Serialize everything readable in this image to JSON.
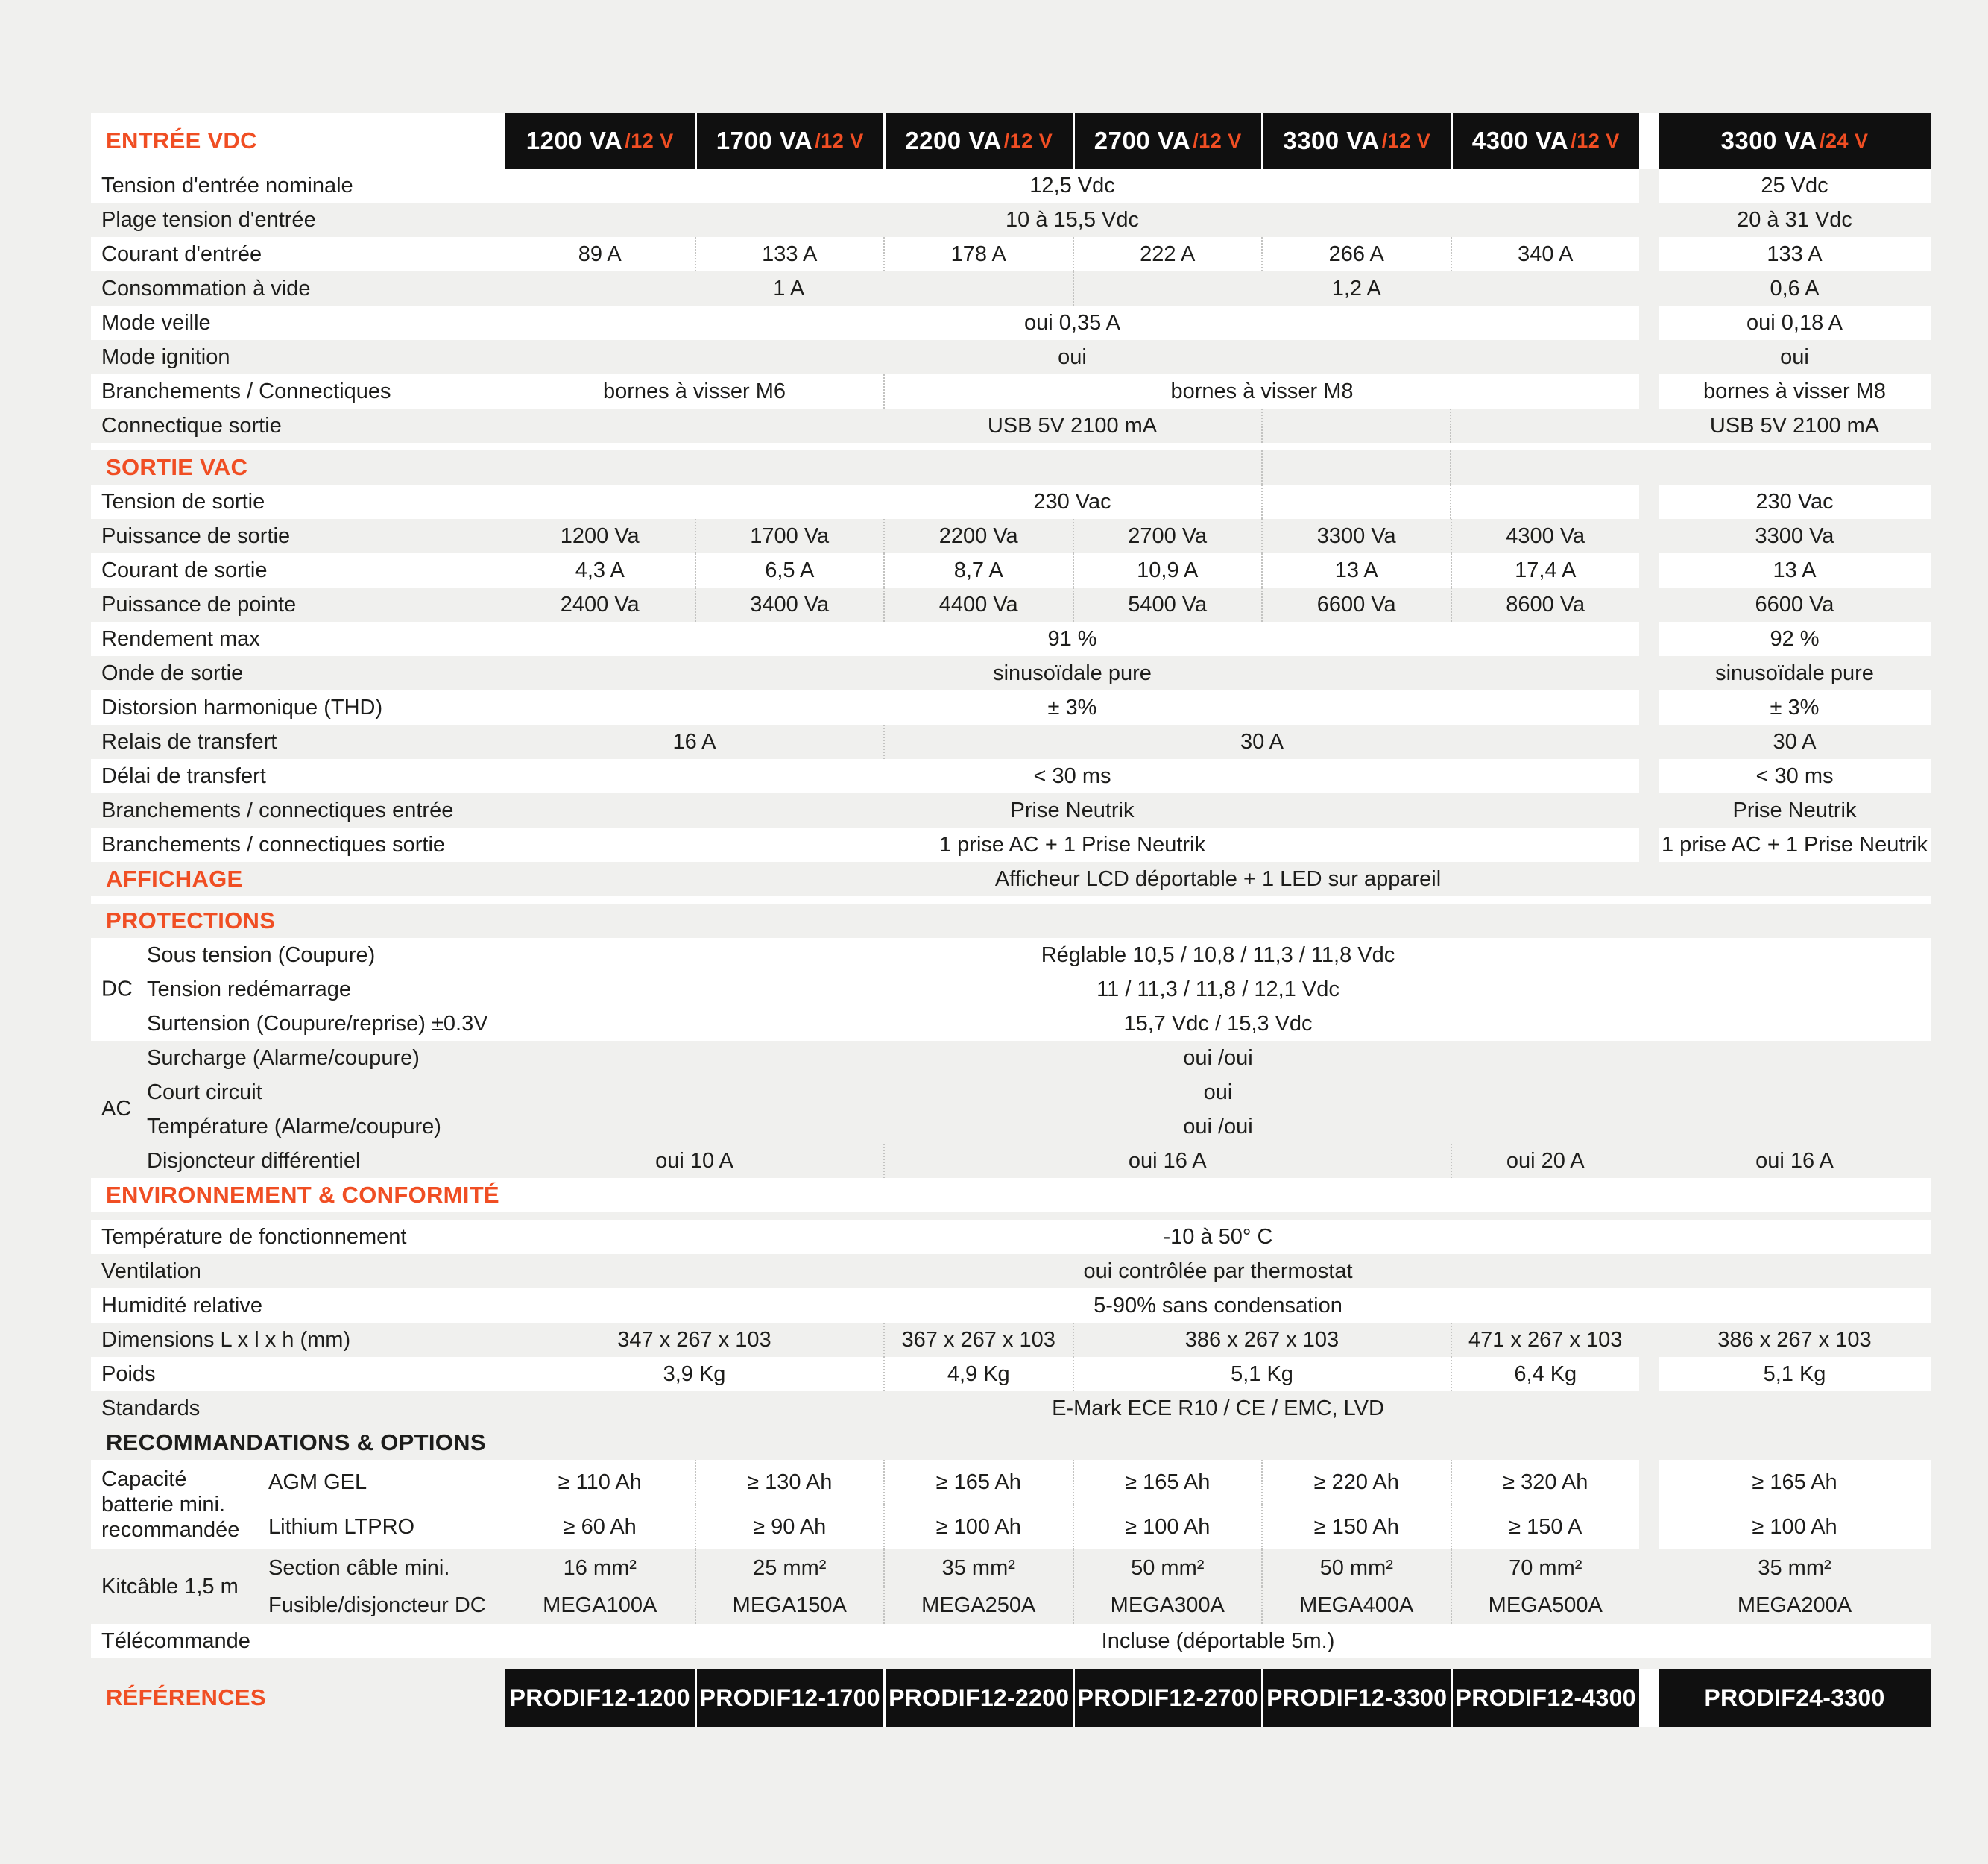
{
  "colors": {
    "accent": "#f04e23",
    "text": "#1d1d1b",
    "page_background": "#f0f0ee",
    "model_header_background": "#101010",
    "row_band": "#ffffff",
    "dotted_separator": "#c3c3c1"
  },
  "header": {
    "section": "ENTRÉE VDC",
    "models": [
      {
        "name": "1200 VA",
        "volt": "/12 V"
      },
      {
        "name": "1700 VA",
        "volt": "/12 V"
      },
      {
        "name": "2200 VA",
        "volt": "/12 V"
      },
      {
        "name": "2700 VA",
        "volt": "/12 V"
      },
      {
        "name": "3300 VA",
        "volt": "/12 V"
      },
      {
        "name": "4300 VA",
        "volt": "/12 V"
      }
    ],
    "model24": {
      "name": "3300 VA",
      "volt": "/24 V"
    }
  },
  "rows": [
    {
      "t": "row",
      "shade": "w",
      "label": "Tension d'entrée nominale",
      "cells": [
        {
          "s": 1,
          "e": 6,
          "v": "12,5 Vdc"
        }
      ],
      "c24": "25 Vdc"
    },
    {
      "t": "row",
      "shade": "g",
      "label": "Plage tension d'entrée",
      "cells": [
        {
          "s": 1,
          "e": 6,
          "v": "10 à 15,5 Vdc"
        }
      ],
      "c24": "20 à 31 Vdc"
    },
    {
      "t": "row",
      "shade": "w",
      "label": "Courant d'entrée",
      "cells": [
        {
          "s": 1,
          "e": 1,
          "v": "89 A"
        },
        {
          "s": 2,
          "e": 2,
          "v": "133 A"
        },
        {
          "s": 3,
          "e": 3,
          "v": "178 A"
        },
        {
          "s": 4,
          "e": 4,
          "v": "222 A"
        },
        {
          "s": 5,
          "e": 5,
          "v": "266 A"
        },
        {
          "s": 6,
          "e": 6,
          "v": "340 A"
        }
      ],
      "c24": "133 A"
    },
    {
      "t": "row",
      "shade": "g",
      "label": "Consommation à vide",
      "cells": [
        {
          "s": 1,
          "e": 3,
          "v": "1 A"
        },
        {
          "s": 4,
          "e": 6,
          "v": "1,2 A"
        }
      ],
      "c24": "0,6 A"
    },
    {
      "t": "row",
      "shade": "w",
      "label": "Mode veille",
      "cells": [
        {
          "s": 1,
          "e": 6,
          "v": "oui 0,35 A"
        }
      ],
      "c24": "oui 0,18 A"
    },
    {
      "t": "row",
      "shade": "g",
      "label": "Mode ignition",
      "cells": [
        {
          "s": 1,
          "e": 6,
          "v": "oui"
        }
      ],
      "c24": "oui"
    },
    {
      "t": "row",
      "shade": "w",
      "label": "Branchements / Connectiques",
      "cells": [
        {
          "s": 1,
          "e": 2,
          "v": "bornes à visser M6"
        },
        {
          "s": 3,
          "e": 6,
          "v": "bornes à visser M8"
        }
      ],
      "c24": "bornes à visser M8"
    },
    {
      "t": "row",
      "shade": "g",
      "label": "Connectique sortie",
      "art": true,
      "cells": [
        {
          "s": 1,
          "e": 6,
          "v": "USB 5V 2100 mA"
        }
      ],
      "c24": "USB 5V 2100 mA"
    },
    {
      "t": "spacer",
      "shade": "w",
      "h": 10
    },
    {
      "t": "section",
      "shade": "g",
      "label": "SORTIE VAC",
      "art": true
    },
    {
      "t": "row",
      "shade": "w",
      "label": "Tension de sortie",
      "art": true,
      "cells": [
        {
          "s": 1,
          "e": 6,
          "v": "230 Vac"
        }
      ],
      "c24": "230 Vac"
    },
    {
      "t": "row",
      "shade": "g",
      "label": "Puissance de sortie",
      "cells": [
        {
          "s": 1,
          "e": 1,
          "v": "1200 Va"
        },
        {
          "s": 2,
          "e": 2,
          "v": "1700 Va"
        },
        {
          "s": 3,
          "e": 3,
          "v": "2200 Va"
        },
        {
          "s": 4,
          "e": 4,
          "v": "2700 Va"
        },
        {
          "s": 5,
          "e": 5,
          "v": "3300 Va"
        },
        {
          "s": 6,
          "e": 6,
          "v": "4300 Va"
        }
      ],
      "c24": "3300 Va"
    },
    {
      "t": "row",
      "shade": "w",
      "label": "Courant de sortie",
      "cells": [
        {
          "s": 1,
          "e": 1,
          "v": "4,3 A"
        },
        {
          "s": 2,
          "e": 2,
          "v": "6,5 A"
        },
        {
          "s": 3,
          "e": 3,
          "v": "8,7 A"
        },
        {
          "s": 4,
          "e": 4,
          "v": "10,9 A"
        },
        {
          "s": 5,
          "e": 5,
          "v": "13 A"
        },
        {
          "s": 6,
          "e": 6,
          "v": "17,4 A"
        }
      ],
      "c24": "13 A"
    },
    {
      "t": "row",
      "shade": "g",
      "label": "Puissance de pointe",
      "cells": [
        {
          "s": 1,
          "e": 1,
          "v": "2400 Va"
        },
        {
          "s": 2,
          "e": 2,
          "v": "3400 Va"
        },
        {
          "s": 3,
          "e": 3,
          "v": "4400 Va"
        },
        {
          "s": 4,
          "e": 4,
          "v": "5400 Va"
        },
        {
          "s": 5,
          "e": 5,
          "v": "6600 Va"
        },
        {
          "s": 6,
          "e": 6,
          "v": "8600 Va"
        }
      ],
      "c24": "6600 Va"
    },
    {
      "t": "row",
      "shade": "w",
      "label": "Rendement max",
      "cells": [
        {
          "s": 1,
          "e": 6,
          "v": "91 %"
        }
      ],
      "c24": "92 %"
    },
    {
      "t": "row",
      "shade": "g",
      "label": "Onde de sortie",
      "cells": [
        {
          "s": 1,
          "e": 6,
          "v": "sinusoïdale pure"
        }
      ],
      "c24": "sinusoïdale pure"
    },
    {
      "t": "row",
      "shade": "w",
      "label": "Distorsion harmonique (THD)",
      "cells": [
        {
          "s": 1,
          "e": 6,
          "v": "± 3%"
        }
      ],
      "c24": "± 3%"
    },
    {
      "t": "row",
      "shade": "g",
      "label": "Relais de transfert",
      "cells": [
        {
          "s": 1,
          "e": 2,
          "v": "16 A"
        },
        {
          "s": 3,
          "e": 6,
          "v": "30 A"
        }
      ],
      "c24": "30 A"
    },
    {
      "t": "row",
      "shade": "w",
      "label": "Délai de transfert",
      "cells": [
        {
          "s": 1,
          "e": 6,
          "v": "< 30 ms"
        }
      ],
      "c24": "< 30 ms"
    },
    {
      "t": "row",
      "shade": "g",
      "label": "Branchements / connectiques entrée",
      "cells": [
        {
          "s": 1,
          "e": 6,
          "v": "Prise Neutrik"
        }
      ],
      "c24": "Prise Neutrik"
    },
    {
      "t": "row",
      "shade": "w",
      "label": "Branchements / connectiques sortie",
      "cells": [
        {
          "s": 1,
          "e": 6,
          "v": "1 prise AC + 1 Prise Neutrik"
        }
      ],
      "c24": "1 prise AC + 1 Prise Neutrik"
    },
    {
      "t": "section",
      "shade": "g",
      "label": "AFFICHAGE",
      "full": "Afficheur LCD déportable + 1 LED sur appareil"
    },
    {
      "t": "spacer",
      "shade": "w",
      "h": 10
    },
    {
      "t": "section",
      "shade": "g",
      "label": "PROTECTIONS"
    },
    {
      "t": "row",
      "shade": "w",
      "label": "Sous tension (Coupure)",
      "indent": true,
      "full": "Réglable 10,5 / 10,8 / 11,3 / 11,8 Vdc"
    },
    {
      "t": "row",
      "shade": "w",
      "label": "Tension redémarrage",
      "indent": true,
      "group": "DC",
      "groupPos": "mid",
      "full": "11 / 11,3 / 11,8 / 12,1 Vdc"
    },
    {
      "t": "row",
      "shade": "w",
      "label": "Surtension (Coupure/reprise) ±0.3V",
      "indent": true,
      "full": "15,7 Vdc / 15,3 Vdc"
    },
    {
      "t": "row",
      "shade": "g",
      "label": "Surcharge (Alarme/coupure)",
      "indent": true,
      "full": "oui /oui"
    },
    {
      "t": "row",
      "shade": "g",
      "label": "Court circuit",
      "indent": true,
      "group": "AC",
      "groupPos": "bottom",
      "full": "oui"
    },
    {
      "t": "row",
      "shade": "g",
      "label": "Température (Alarme/coupure)",
      "indent": true,
      "full": "oui /oui"
    },
    {
      "t": "row",
      "shade": "g",
      "label": "Disjoncteur différentiel",
      "indent": true,
      "cells": [
        {
          "s": 1,
          "e": 2,
          "v": "oui 10 A"
        },
        {
          "s": 3,
          "e": 5,
          "v": "oui 16 A"
        },
        {
          "s": 6,
          "e": 6,
          "v": "oui 20 A"
        }
      ],
      "c24": "oui 16 A"
    },
    {
      "t": "section",
      "shade": "w",
      "label": "ENVIRONNEMENT & CONFORMITÉ"
    },
    {
      "t": "spacer",
      "shade": "g",
      "h": 10
    },
    {
      "t": "row",
      "shade": "w",
      "label": "Température de fonctionnement",
      "full": "-10 à 50° C"
    },
    {
      "t": "row",
      "shade": "g",
      "label": "Ventilation",
      "full": "oui contrôlée par thermostat"
    },
    {
      "t": "row",
      "shade": "w",
      "label": "Humidité relative",
      "full": "5-90% sans condensation"
    },
    {
      "t": "row",
      "shade": "g",
      "label": "Dimensions L x l x h (mm)",
      "cells": [
        {
          "s": 1,
          "e": 2,
          "v": "347 x 267 x 103"
        },
        {
          "s": 3,
          "e": 3,
          "v": "367 x 267 x 103"
        },
        {
          "s": 4,
          "e": 5,
          "v": "386 x 267 x 103"
        },
        {
          "s": 6,
          "e": 6,
          "v": "471 x 267 x 103"
        }
      ],
      "c24": "386 x 267 x 103"
    },
    {
      "t": "row",
      "shade": "w",
      "label": "Poids",
      "cells": [
        {
          "s": 1,
          "e": 2,
          "v": "3,9 Kg"
        },
        {
          "s": 3,
          "e": 3,
          "v": "4,9 Kg"
        },
        {
          "s": 4,
          "e": 5,
          "v": "5,1 Kg"
        },
        {
          "s": 6,
          "e": 6,
          "v": "6,4 Kg"
        }
      ],
      "c24": "5,1 Kg"
    },
    {
      "t": "row",
      "shade": "g",
      "label": "Standards",
      "full": "E-Mark ECE R10 / CE / EMC, LVD"
    },
    {
      "t": "section",
      "shade": "g",
      "dark": true,
      "label": "RECOMMANDATIONS & OPTIONS"
    },
    {
      "t": "group",
      "shade": "w",
      "rh": 60,
      "group": "Capacité batterie mini. recommandée",
      "subrows": [
        {
          "label": "AGM GEL",
          "cells": [
            "≥ 110 Ah",
            "≥ 130 Ah",
            "≥ 165 Ah",
            "≥ 165 Ah",
            "≥ 220 Ah",
            "≥ 320 Ah"
          ],
          "c24": "≥ 165 Ah"
        },
        {
          "label": "Lithium LTPRO",
          "cells": [
            "≥ 60 Ah",
            "≥ 90 Ah",
            "≥ 100 Ah",
            "≥ 100 Ah",
            "≥ 150 Ah",
            "≥ 150 A"
          ],
          "c24": "≥ 100 Ah"
        }
      ]
    },
    {
      "t": "group",
      "shade": "g",
      "rh": 50,
      "group": "Kitcâble 1,5 m",
      "subrows": [
        {
          "label": "Section câble mini.",
          "cells": [
            "16 mm²",
            "25 mm²",
            "35 mm²",
            "50 mm²",
            "50 mm²",
            "70 mm²"
          ],
          "c24": "35 mm²"
        },
        {
          "label": "Fusible/disjoncteur DC",
          "cells": [
            "MEGA100A",
            "MEGA150A",
            "MEGA250A",
            "MEGA300A",
            "MEGA400A",
            "MEGA500A"
          ],
          "c24": "MEGA200A"
        }
      ]
    },
    {
      "t": "row",
      "shade": "w",
      "label": "Télécommande",
      "full": "Incluse (déportable 5m.)"
    },
    {
      "t": "refs",
      "label": "RÉFÉRENCES",
      "items": [
        "PRODIF12-1200",
        "PRODIF12-1700",
        "PRODIF12-2200",
        "PRODIF12-2700",
        "PRODIF12-3300",
        "PRODIF12-4300"
      ],
      "item24": "PRODIF24-3300"
    }
  ]
}
